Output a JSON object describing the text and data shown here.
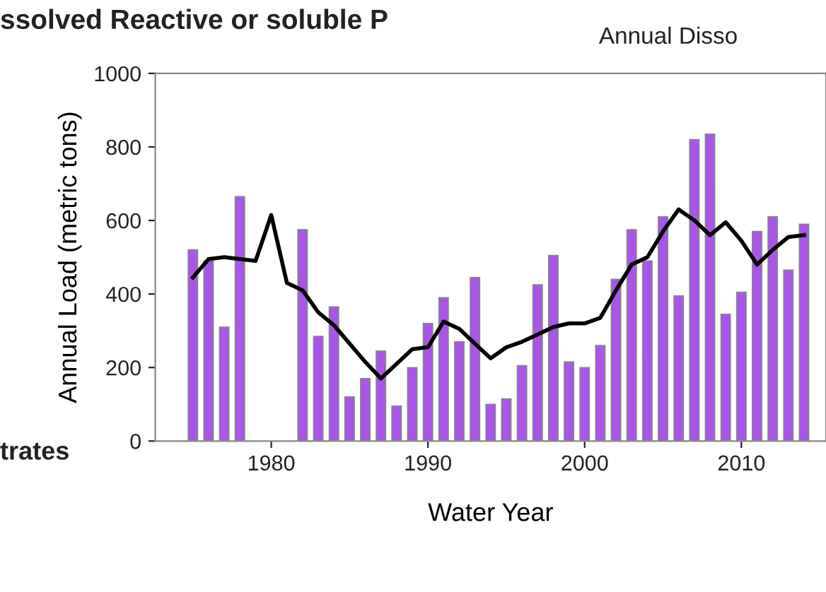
{
  "chart_data": {
    "type": "bar",
    "xlabel": "Water Year",
    "ylabel": "Annual Load (metric tons)",
    "annotations": [
      "ssolved Reactive or soluble P",
      "Annual Disso",
      "trates"
    ],
    "x": [
      1975,
      1976,
      1977,
      1978,
      1979,
      1980,
      1981,
      1982,
      1983,
      1984,
      1985,
      1986,
      1987,
      1988,
      1989,
      1990,
      1991,
      1992,
      1993,
      1994,
      1995,
      1996,
      1997,
      1998,
      1999,
      2000,
      2001,
      2002,
      2003,
      2004,
      2005,
      2006,
      2007,
      2008,
      2009,
      2010,
      2011,
      2012,
      2013,
      2014
    ],
    "series": [
      {
        "color": "#a855e8",
        "values": [
          520,
          490,
          310,
          665,
          null,
          null,
          null,
          575,
          285,
          365,
          120,
          170,
          245,
          95,
          200,
          320,
          390,
          270,
          445,
          100,
          115,
          205,
          425,
          505,
          215,
          200,
          260,
          440,
          575,
          490,
          610,
          395,
          820,
          835,
          345,
          405,
          570,
          610,
          465,
          590
        ]
      },
      {
        "type": "line",
        "color": "#000000",
        "values": [
          445,
          495,
          500,
          495,
          490,
          615,
          430,
          410,
          350,
          315,
          265,
          215,
          170,
          210,
          250,
          255,
          325,
          305,
          265,
          225,
          255,
          270,
          290,
          310,
          320,
          320,
          335,
          410,
          480,
          500,
          570,
          630,
          600,
          560,
          595,
          545,
          480,
          520,
          555,
          560
        ]
      }
    ],
    "xlim": [
      1972.6,
      2015.4
    ],
    "ylim": [
      0,
      1000
    ],
    "xticks": [
      1980,
      1990,
      2000,
      2010
    ],
    "yticks": [
      0,
      200,
      400,
      600,
      800,
      1000
    ],
    "grid": false,
    "legend": false
  }
}
